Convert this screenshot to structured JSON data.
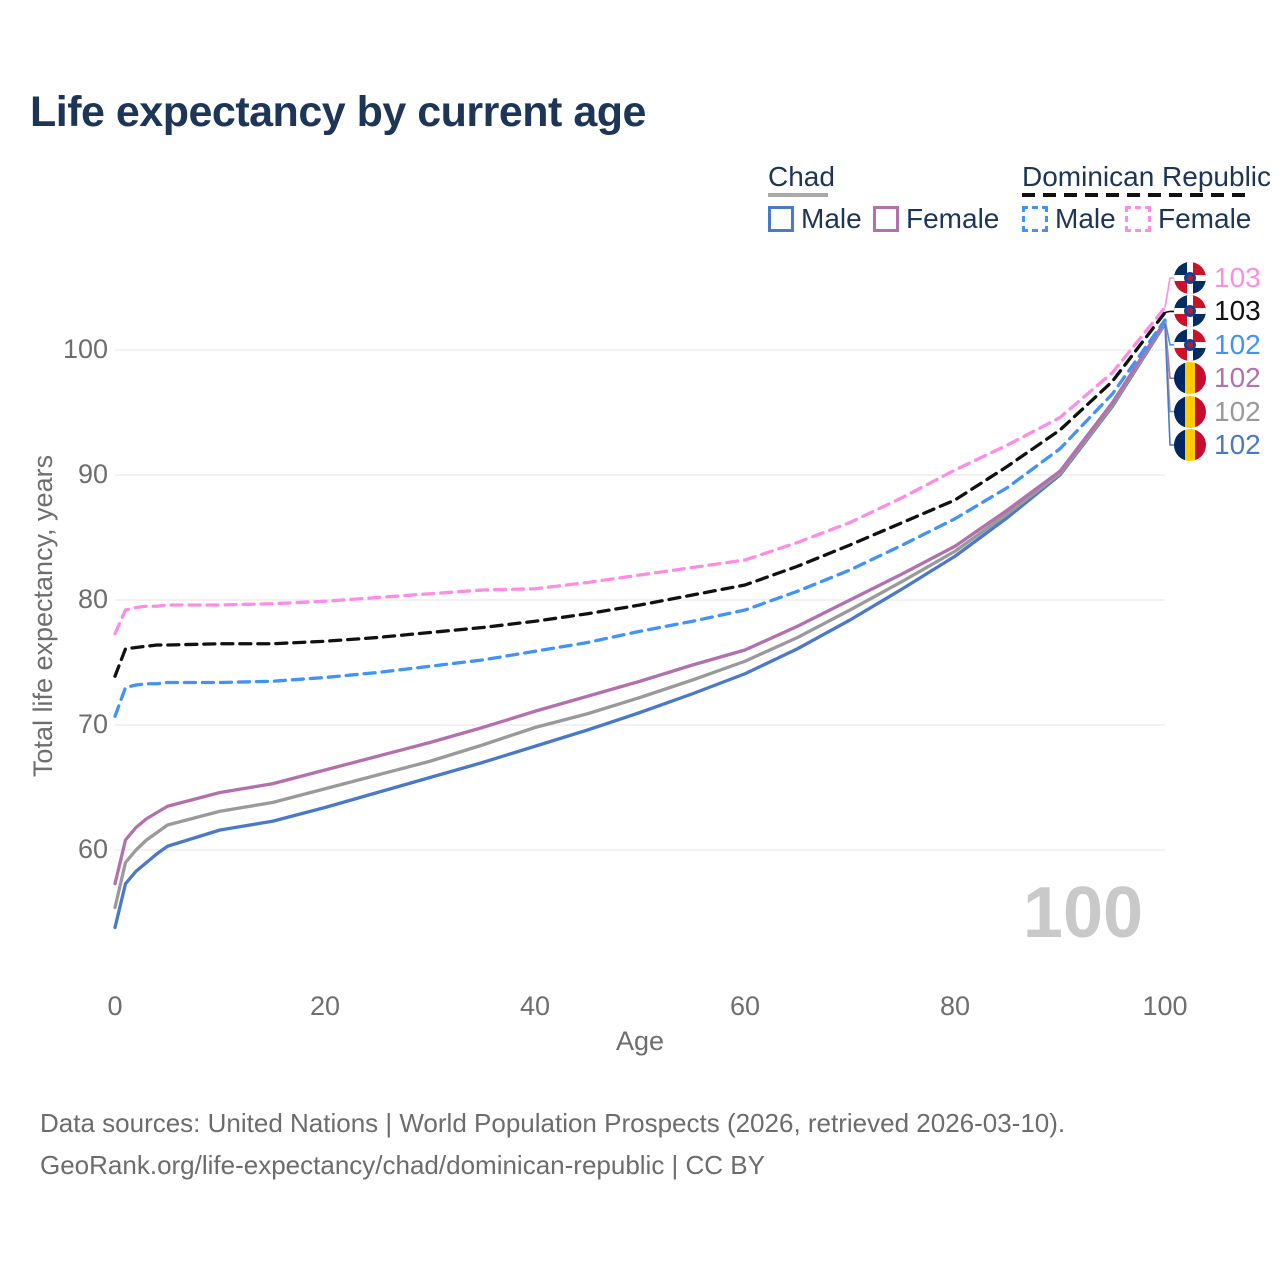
{
  "title": "Life expectancy by current age",
  "legend": {
    "groups": [
      {
        "country": "Chad",
        "style": "solid",
        "items": [
          {
            "key": "chad_male",
            "label": "Male"
          },
          {
            "key": "chad_female",
            "label": "Female"
          }
        ]
      },
      {
        "country": "Dominican Republic",
        "style": "dashed",
        "items": [
          {
            "key": "dr_male",
            "label": "Male"
          },
          {
            "key": "dr_female",
            "label": "Female"
          }
        ]
      }
    ]
  },
  "colors": {
    "title_text": "#1d3557",
    "axis_text": "#6e6e6e",
    "gridline": "#e9e9e9",
    "watermark": "#c9c9c9",
    "chad_underline": "#a9a9a9",
    "dr_underline": "#111111"
  },
  "chart_data": {
    "type": "line",
    "title": "Life expectancy by current age",
    "xlabel": "Age",
    "ylabel": "Total life expectancy, years",
    "xlim": [
      0,
      100
    ],
    "ylim": [
      53,
      104
    ],
    "x_ticks": [
      0,
      20,
      40,
      60,
      80,
      100
    ],
    "y_ticks": [
      100,
      90,
      80,
      70,
      60
    ],
    "grid": "horizontal",
    "x": [
      0,
      1,
      2,
      3,
      4,
      5,
      10,
      15,
      20,
      25,
      30,
      35,
      40,
      45,
      50,
      55,
      60,
      65,
      70,
      75,
      80,
      85,
      90,
      95,
      100
    ],
    "series": [
      {
        "key": "chad_male",
        "name": "Chad — Male",
        "color": "#4b79c9",
        "dashed": false,
        "values": [
          53.8,
          57.3,
          58.3,
          59.0,
          59.7,
          60.3,
          61.6,
          62.3,
          63.4,
          64.6,
          65.8,
          67.0,
          68.3,
          69.6,
          71.0,
          72.5,
          74.1,
          76.1,
          78.4,
          80.9,
          83.5,
          86.6,
          90.0,
          95.5,
          102.1
        ]
      },
      {
        "key": "chad_all",
        "name": "Chad — Both sexes",
        "color": "#9a9a9a",
        "dashed": false,
        "values": [
          55.4,
          59.0,
          60.0,
          60.8,
          61.4,
          62.0,
          63.1,
          63.8,
          64.9,
          66.0,
          67.1,
          68.4,
          69.8,
          70.9,
          72.2,
          73.6,
          75.1,
          77.0,
          79.2,
          81.5,
          83.9,
          86.9,
          90.1,
          95.6,
          102.2
        ]
      },
      {
        "key": "chad_female",
        "name": "Chad — Female",
        "color": "#b271ad",
        "dashed": false,
        "values": [
          57.3,
          60.8,
          61.8,
          62.5,
          63.0,
          63.5,
          64.6,
          65.3,
          66.4,
          67.5,
          68.6,
          69.8,
          71.1,
          72.3,
          73.5,
          74.8,
          76.0,
          77.9,
          80.0,
          82.1,
          84.3,
          87.2,
          90.3,
          95.8,
          102.3
        ]
      },
      {
        "key": "dr_male",
        "name": "Dominican Republic — Male",
        "color": "#4193f7",
        "dashed": true,
        "values": [
          70.7,
          73.0,
          73.2,
          73.3,
          73.3,
          73.4,
          73.4,
          73.5,
          73.8,
          74.2,
          74.7,
          75.2,
          75.9,
          76.6,
          77.5,
          78.3,
          79.2,
          80.7,
          82.4,
          84.4,
          86.5,
          89.0,
          92.1,
          96.5,
          102.4
        ]
      },
      {
        "key": "dr_all",
        "name": "Dominican Republic — Both sexes",
        "color": "#111111",
        "dashed": true,
        "values": [
          73.9,
          76.1,
          76.2,
          76.3,
          76.4,
          76.4,
          76.5,
          76.5,
          76.7,
          77.0,
          77.4,
          77.8,
          78.3,
          78.9,
          79.6,
          80.4,
          81.2,
          82.7,
          84.4,
          86.2,
          88.0,
          90.7,
          93.6,
          97.5,
          103.0
        ]
      },
      {
        "key": "dr_female",
        "name": "Dominican Republic — Female",
        "color": "#ff8ce3",
        "dashed": true,
        "values": [
          77.3,
          79.2,
          79.4,
          79.5,
          79.5,
          79.6,
          79.6,
          79.7,
          79.9,
          80.2,
          80.5,
          80.8,
          80.9,
          81.4,
          82.0,
          82.6,
          83.2,
          84.6,
          86.2,
          88.2,
          90.4,
          92.4,
          94.6,
          98.2,
          103.4
        ]
      }
    ]
  },
  "end_labels": [
    {
      "label": "103",
      "series": "dr_female",
      "flag": "dominican-republic"
    },
    {
      "label": "103",
      "series": "dr_all",
      "flag": "dominican-republic"
    },
    {
      "label": "102",
      "series": "dr_male",
      "flag": "dominican-republic"
    },
    {
      "label": "102",
      "series": "chad_female",
      "flag": "chad"
    },
    {
      "label": "102",
      "series": "chad_all",
      "flag": "chad"
    },
    {
      "label": "102",
      "series": "chad_male",
      "flag": "chad"
    }
  ],
  "watermark": "100",
  "footer": {
    "line1": "Data sources: United Nations | World Population Prospects (2026, retrieved 2026-03-10).",
    "line2": "GeoRank.org/life-expectancy/chad/dominican-republic | CC BY"
  }
}
